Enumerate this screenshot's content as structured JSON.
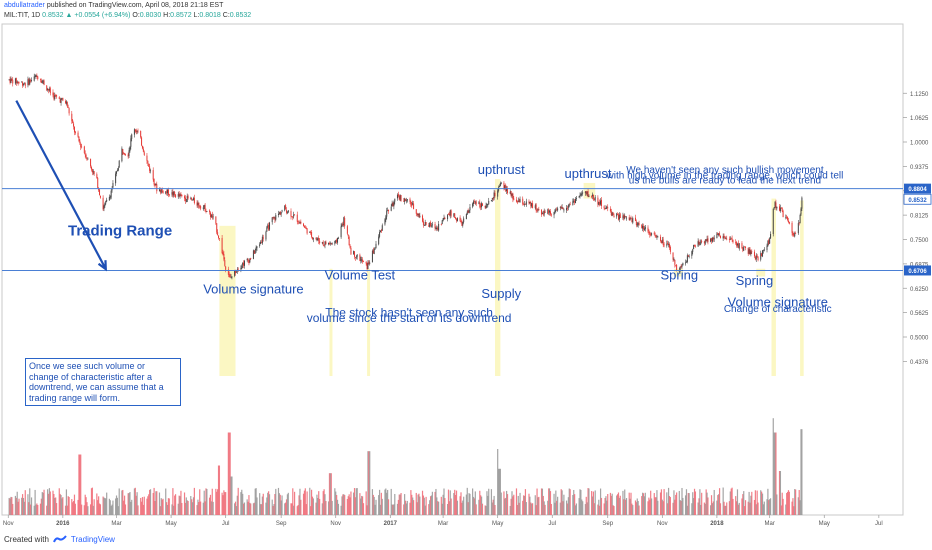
{
  "header": {
    "user": "abdullatrader",
    "published": " published on TradingView.com, April 08, 2018 21:18 EST",
    "symbol": "MIL:TIT, 1D",
    "close": "0.8532",
    "change": "+0.0554 (+6.94%)",
    "o_label": "O:",
    "o": "0.8030",
    "h_label": "H:",
    "h": "0.8572",
    "l_label": "L:",
    "l": "0.8018",
    "c_label": "C:",
    "c": "0.8532"
  },
  "footer": {
    "created_with": "Created with",
    "brand": "TradingView"
  },
  "colors": {
    "up": "#26a69a",
    "down": "#ef5350",
    "candle_up": "#444444",
    "candle_down": "#e53935",
    "level_line": "#4a7fd4",
    "highlight": "#faf6b8",
    "annotation": "#1e4fb4"
  },
  "chart_data": {
    "type": "candlestick",
    "title": "",
    "ylim": [
      0.4,
      1.17
    ],
    "y_ticks": [
      1.125,
      1.0625,
      1.0,
      0.9375,
      0.875,
      0.8125,
      0.75,
      0.6875,
      0.625,
      0.5625,
      0.5,
      0.4376
    ],
    "y_tick_labels": [
      "1.1250",
      "1.0625",
      "1.0000",
      "0.9375",
      "0.8750",
      "0.8125",
      "0.7500",
      "0.6875",
      "0.6250",
      "0.5625",
      "0.5000",
      "0.4376"
    ],
    "price_tags": [
      {
        "label": "0.8804",
        "value": 0.8804,
        "style": "level"
      },
      {
        "label": "0.8532",
        "value": 0.8532,
        "style": "last"
      },
      {
        "label": "0.6706",
        "value": 0.6706,
        "style": "level"
      }
    ],
    "horizontal_levels": [
      0.8804,
      0.6706
    ],
    "x_labels": [
      "Nov",
      "2016",
      "Mar",
      "May",
      "Jul",
      "Sep",
      "Nov",
      "2017",
      "Mar",
      "May",
      "Jul",
      "Sep",
      "Nov",
      "2018",
      "Mar",
      "May",
      "Jul"
    ],
    "x_bold": [
      "2016",
      "2017",
      "2018"
    ],
    "price_path": [
      [
        "2015-11-01",
        1.16
      ],
      [
        "2015-11-20",
        1.15
      ],
      [
        "2015-12-05",
        1.17
      ],
      [
        "2015-12-20",
        1.12
      ],
      [
        "2016-01-05",
        1.1
      ],
      [
        "2016-01-15",
        1.02
      ],
      [
        "2016-01-28",
        0.96
      ],
      [
        "2016-02-08",
        0.9
      ],
      [
        "2016-02-15",
        0.83
      ],
      [
        "2016-02-22",
        0.86
      ],
      [
        "2016-03-01",
        0.92
      ],
      [
        "2016-03-07",
        0.98
      ],
      [
        "2016-03-14",
        0.97
      ],
      [
        "2016-03-20",
        1.04
      ],
      [
        "2016-03-26",
        1.02
      ],
      [
        "2016-04-04",
        0.95
      ],
      [
        "2016-04-15",
        0.88
      ],
      [
        "2016-04-28",
        0.87
      ],
      [
        "2016-05-12",
        0.86
      ],
      [
        "2016-05-25",
        0.85
      ],
      [
        "2016-06-08",
        0.83
      ],
      [
        "2016-06-18",
        0.8
      ],
      [
        "2016-06-24",
        0.75
      ],
      [
        "2016-07-01",
        0.68
      ],
      [
        "2016-07-06",
        0.65
      ],
      [
        "2016-07-15",
        0.68
      ],
      [
        "2016-07-28",
        0.7
      ],
      [
        "2016-08-08",
        0.74
      ],
      [
        "2016-08-22",
        0.8
      ],
      [
        "2016-09-05",
        0.83
      ],
      [
        "2016-09-20",
        0.8
      ],
      [
        "2016-10-05",
        0.76
      ],
      [
        "2016-10-18",
        0.74
      ],
      [
        "2016-11-01",
        0.74
      ],
      [
        "2016-11-10",
        0.8
      ],
      [
        "2016-11-18",
        0.72
      ],
      [
        "2016-11-28",
        0.7
      ],
      [
        "2016-12-06",
        0.68
      ],
      [
        "2016-12-15",
        0.73
      ],
      [
        "2016-12-28",
        0.82
      ],
      [
        "2017-01-10",
        0.86
      ],
      [
        "2017-01-25",
        0.84
      ],
      [
        "2017-02-08",
        0.79
      ],
      [
        "2017-02-22",
        0.78
      ],
      [
        "2017-03-08",
        0.82
      ],
      [
        "2017-03-22",
        0.79
      ],
      [
        "2017-04-05",
        0.85
      ],
      [
        "2017-04-18",
        0.83
      ],
      [
        "2017-04-26",
        0.86
      ],
      [
        "2017-05-05",
        0.89
      ],
      [
        "2017-05-10",
        0.88
      ],
      [
        "2017-05-20",
        0.85
      ],
      [
        "2017-06-05",
        0.84
      ],
      [
        "2017-06-20",
        0.82
      ],
      [
        "2017-07-05",
        0.82
      ],
      [
        "2017-07-20",
        0.84
      ],
      [
        "2017-08-05",
        0.87
      ],
      [
        "2017-08-15",
        0.86
      ],
      [
        "2017-08-25",
        0.84
      ],
      [
        "2017-09-10",
        0.81
      ],
      [
        "2017-09-28",
        0.8
      ],
      [
        "2017-10-12",
        0.78
      ],
      [
        "2017-10-28",
        0.75
      ],
      [
        "2017-11-08",
        0.73
      ],
      [
        "2017-11-18",
        0.67
      ],
      [
        "2017-11-26",
        0.69
      ],
      [
        "2017-12-05",
        0.73
      ],
      [
        "2017-12-20",
        0.75
      ],
      [
        "2018-01-05",
        0.76
      ],
      [
        "2018-01-22",
        0.74
      ],
      [
        "2018-02-05",
        0.72
      ],
      [
        "2018-02-15",
        0.7
      ],
      [
        "2018-02-22",
        0.72
      ],
      [
        "2018-03-01",
        0.75
      ],
      [
        "2018-03-06",
        0.84
      ],
      [
        "2018-03-12",
        0.83
      ],
      [
        "2018-03-20",
        0.8
      ],
      [
        "2018-03-28",
        0.76
      ],
      [
        "2018-04-03",
        0.79
      ],
      [
        "2018-04-06",
        0.853
      ]
    ],
    "volume_ylim": [
      0,
      1
    ],
    "volume_spikes": [
      [
        "2016-01-20",
        0.55
      ],
      [
        "2016-06-24",
        0.45
      ],
      [
        "2016-07-05",
        0.75
      ],
      [
        "2016-07-08",
        0.35
      ],
      [
        "2016-10-26",
        0.38
      ],
      [
        "2016-12-08",
        0.58
      ],
      [
        "2017-05-01",
        0.6
      ],
      [
        "2017-05-03",
        0.42
      ],
      [
        "2018-03-05",
        0.88
      ],
      [
        "2018-03-07",
        0.75
      ],
      [
        "2018-03-12",
        0.4
      ],
      [
        "2018-04-06",
        0.78
      ]
    ],
    "annotations": [
      {
        "text": "Trading Range",
        "date": "2016-03-05",
        "value": 0.76,
        "bold": true,
        "size": 15
      },
      {
        "text": "Volume Test",
        "date": "2016-11-28",
        "value": 0.647,
        "size": 13
      },
      {
        "text": "Volume signature",
        "date": "2016-08-01",
        "value": 0.612,
        "size": 13
      },
      {
        "text": "upthrust",
        "date": "2017-05-05",
        "value": 0.918,
        "size": 13
      },
      {
        "text": "upthrust",
        "date": "2017-08-10",
        "value": 0.908,
        "size": 13
      },
      {
        "text": "Supply",
        "date": "2017-05-05",
        "value": 0.6,
        "size": 13
      },
      {
        "text": "Spring",
        "date": "2017-11-20",
        "value": 0.647,
        "size": 13
      },
      {
        "text": "Spring",
        "date": "2018-02-12",
        "value": 0.633,
        "size": 13
      },
      {
        "text": "Volume signature",
        "date": "2018-03-10",
        "value": 0.578,
        "size": 13
      },
      {
        "text": "Change of characteristic",
        "date": "2018-03-10",
        "value": 0.564,
        "size": 10
      },
      {
        "text": "The stock hasn't seen any such",
        "date": "2017-01-22",
        "value": 0.553,
        "size": 12
      },
      {
        "text": "volume since the start of its downtrend",
        "date": "2017-01-22",
        "value": 0.539,
        "size": 12
      },
      {
        "text": "We haven't seen any such bullish movement",
        "date": "2018-01-10",
        "value": 0.92,
        "size": 10
      },
      {
        "text": "with high volume in the trading range, which could tell",
        "date": "2018-01-10",
        "value": 0.907,
        "size": 10
      },
      {
        "text": "us the bulls are ready to lead the next trend",
        "date": "2018-01-10",
        "value": 0.894,
        "size": 10
      }
    ],
    "box_note": "Once we see such volume or change of characteristic after a downtrend, we can assume that a trading range will form.",
    "arrow": {
      "from": [
        "2015-11-10",
        1.106
      ],
      "to": [
        "2016-02-18",
        0.674
      ]
    },
    "highlight_zones": [
      {
        "start": "2016-06-24",
        "end": "2016-07-12",
        "top": 0.785,
        "bottom": 0.4
      },
      {
        "start": "2016-10-25",
        "end": "2016-10-28",
        "top": 0.675,
        "bottom": 0.4
      },
      {
        "start": "2016-12-06",
        "end": "2016-12-09",
        "top": 0.675,
        "bottom": 0.4
      },
      {
        "start": "2017-04-28",
        "end": "2017-05-04",
        "top": 0.905,
        "bottom": 0.4
      },
      {
        "start": "2017-08-05",
        "end": "2017-08-18",
        "top": 0.895,
        "bottom": 0.855
      },
      {
        "start": "2017-11-14",
        "end": "2017-11-24",
        "top": 0.675,
        "bottom": 0.655
      },
      {
        "start": "2018-02-14",
        "end": "2018-02-24",
        "top": 0.675,
        "bottom": 0.655
      },
      {
        "start": "2018-03-03",
        "end": "2018-03-08",
        "top": 0.855,
        "bottom": 0.4
      },
      {
        "start": "2018-04-04",
        "end": "2018-04-08",
        "top": 0.85,
        "bottom": 0.4
      }
    ]
  }
}
